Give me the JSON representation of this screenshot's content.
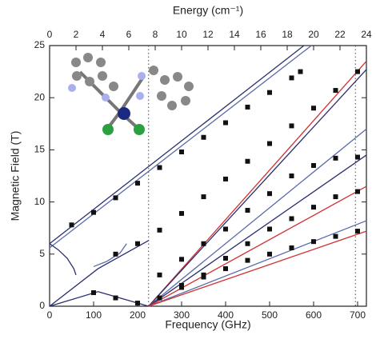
{
  "chart_data": {
    "type": "scatter",
    "x_label": "Frequency (GHz)",
    "y_label": "Magnetic Field (T)",
    "x2_label": "Energy (cm⁻¹)",
    "xlim": [
      0,
      720
    ],
    "ylim": [
      0,
      25
    ],
    "x2lim": [
      0,
      24
    ],
    "xticks": [
      0,
      100,
      200,
      300,
      400,
      500,
      600,
      700
    ],
    "yticks": [
      0,
      5,
      10,
      15,
      20,
      25
    ],
    "x2ticks": [
      0,
      2,
      4,
      6,
      8,
      10,
      12,
      14,
      16,
      18,
      20,
      22,
      24
    ],
    "vlines": [
      225,
      695
    ],
    "series": [
      {
        "type": "line",
        "color": "#2a2f6e",
        "x": [
          0,
          578
        ],
        "values": [
          6,
          25
        ]
      },
      {
        "type": "line",
        "color": "#5a6aa8",
        "x": [
          0,
          595
        ],
        "values": [
          5.6,
          25
        ]
      },
      {
        "type": "line",
        "color": "#d03030",
        "x": [
          225,
          720
        ],
        "values": [
          0,
          23.5
        ]
      },
      {
        "type": "line",
        "color": "#2a2f6e",
        "x": [
          225,
          720
        ],
        "values": [
          0,
          22.7
        ]
      },
      {
        "type": "line",
        "color": "#5a6aa8",
        "x": [
          225,
          720
        ],
        "values": [
          0,
          17
        ]
      },
      {
        "type": "line",
        "color": "#2a2f6e",
        "x": [
          225,
          720
        ],
        "values": [
          0,
          14.5
        ]
      },
      {
        "type": "line",
        "color": "#d03030",
        "x": [
          225,
          720
        ],
        "values": [
          0,
          11.5
        ]
      },
      {
        "type": "line",
        "color": "#5a6aa8",
        "x": [
          225,
          720
        ],
        "values": [
          0,
          8.2
        ]
      },
      {
        "type": "line",
        "color": "#d03030",
        "x": [
          225,
          720
        ],
        "values": [
          0,
          7.2
        ]
      },
      {
        "type": "line",
        "color": "#2a2f6e",
        "x": [
          0,
          20,
          40,
          55,
          60
        ],
        "values": [
          6,
          5.4,
          4.6,
          3.6,
          3
        ]
      },
      {
        "type": "line",
        "color": "#2a2f6e",
        "x": [
          0,
          110,
          225
        ],
        "values": [
          0,
          3.6,
          6.3
        ]
      },
      {
        "type": "line",
        "color": "#5a6aa8",
        "x": [
          100,
          130,
          160,
          175
        ],
        "values": [
          3.8,
          4.3,
          5.1,
          6
        ]
      },
      {
        "type": "line",
        "color": "#2a2f6e",
        "x": [
          0,
          110,
          225
        ],
        "values": [
          0,
          1.4,
          0
        ]
      },
      {
        "type": "scatter",
        "color": "#111111",
        "x": [
          50,
          100,
          150,
          200,
          250,
          300,
          350,
          400,
          450,
          500,
          550,
          570
        ],
        "values": [
          7.8,
          9.0,
          10.4,
          11.8,
          13.3,
          14.8,
          16.2,
          17.6,
          19.1,
          20.5,
          21.9,
          22.5
        ]
      },
      {
        "type": "scatter",
        "color": "#111111",
        "x": [
          150,
          200,
          250,
          300,
          350,
          400,
          450,
          500,
          550,
          600,
          650,
          700
        ],
        "values": [
          5.0,
          6.0,
          7.3,
          8.9,
          10.5,
          12.2,
          13.9,
          15.6,
          17.3,
          19.0,
          20.7,
          22.5
        ]
      },
      {
        "type": "scatter",
        "color": "#111111",
        "x": [
          250,
          300,
          350,
          400,
          450,
          500,
          550,
          600,
          650,
          700
        ],
        "values": [
          3.0,
          4.5,
          6.0,
          7.4,
          9.2,
          10.8,
          12.5,
          13.5,
          14.2,
          14.3
        ]
      },
      {
        "type": "scatter",
        "color": "#111111",
        "x": [
          300,
          350,
          400,
          450,
          500,
          550,
          600,
          650,
          700
        ],
        "values": [
          2.0,
          3.0,
          4.6,
          6.0,
          7.4,
          8.4,
          9.5,
          10.5,
          11.0
        ]
      },
      {
        "type": "scatter",
        "color": "#111111",
        "x": [
          250,
          300,
          350,
          400,
          450,
          500,
          550,
          600,
          650,
          700
        ],
        "values": [
          0.8,
          1.8,
          2.8,
          3.6,
          4.4,
          5.0,
          5.6,
          6.2,
          6.7,
          7.2
        ]
      },
      {
        "type": "scatter",
        "color": "#111111",
        "x": [
          100,
          150,
          200
        ],
        "values": [
          1.3,
          0.8,
          0.3
        ]
      }
    ]
  }
}
